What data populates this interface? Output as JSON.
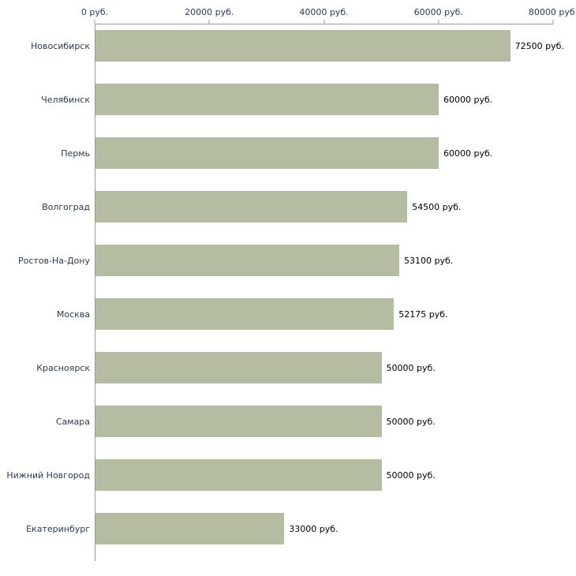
{
  "chart_data": {
    "type": "bar",
    "orientation": "horizontal",
    "title": "",
    "xlabel": "",
    "ylabel": "",
    "categories": [
      "Новосибирск",
      "Челябинск",
      "Пермь",
      "Волгоград",
      "Ростов-На-Дону",
      "Москва",
      "Красноярск",
      "Самара",
      "Нижний Новгород",
      "Екатеринбург"
    ],
    "values": [
      72500,
      60000,
      60000,
      54500,
      53100,
      52175,
      50000,
      50000,
      50000,
      33000
    ],
    "value_labels": [
      "72500 руб.",
      "60000 руб.",
      "60000 руб.",
      "54500 руб.",
      "53100 руб.",
      "52175 руб.",
      "50000 руб.",
      "50000 руб.",
      "50000 руб.",
      "33000 руб."
    ],
    "x_ticks": [
      0,
      20000,
      40000,
      60000,
      80000
    ],
    "x_tick_labels": [
      "0 руб.",
      "20000 руб.",
      "40000 руб.",
      "60000 руб.",
      "80000 руб."
    ],
    "xlim": [
      0,
      80000
    ],
    "axis_position": "top",
    "grid": false,
    "legend": false,
    "bar_color": "#b4bda2",
    "axis_color": "#999999",
    "label_color": "#2b3a4f",
    "value_color": "#000000",
    "background_color": "#ffffff"
  }
}
